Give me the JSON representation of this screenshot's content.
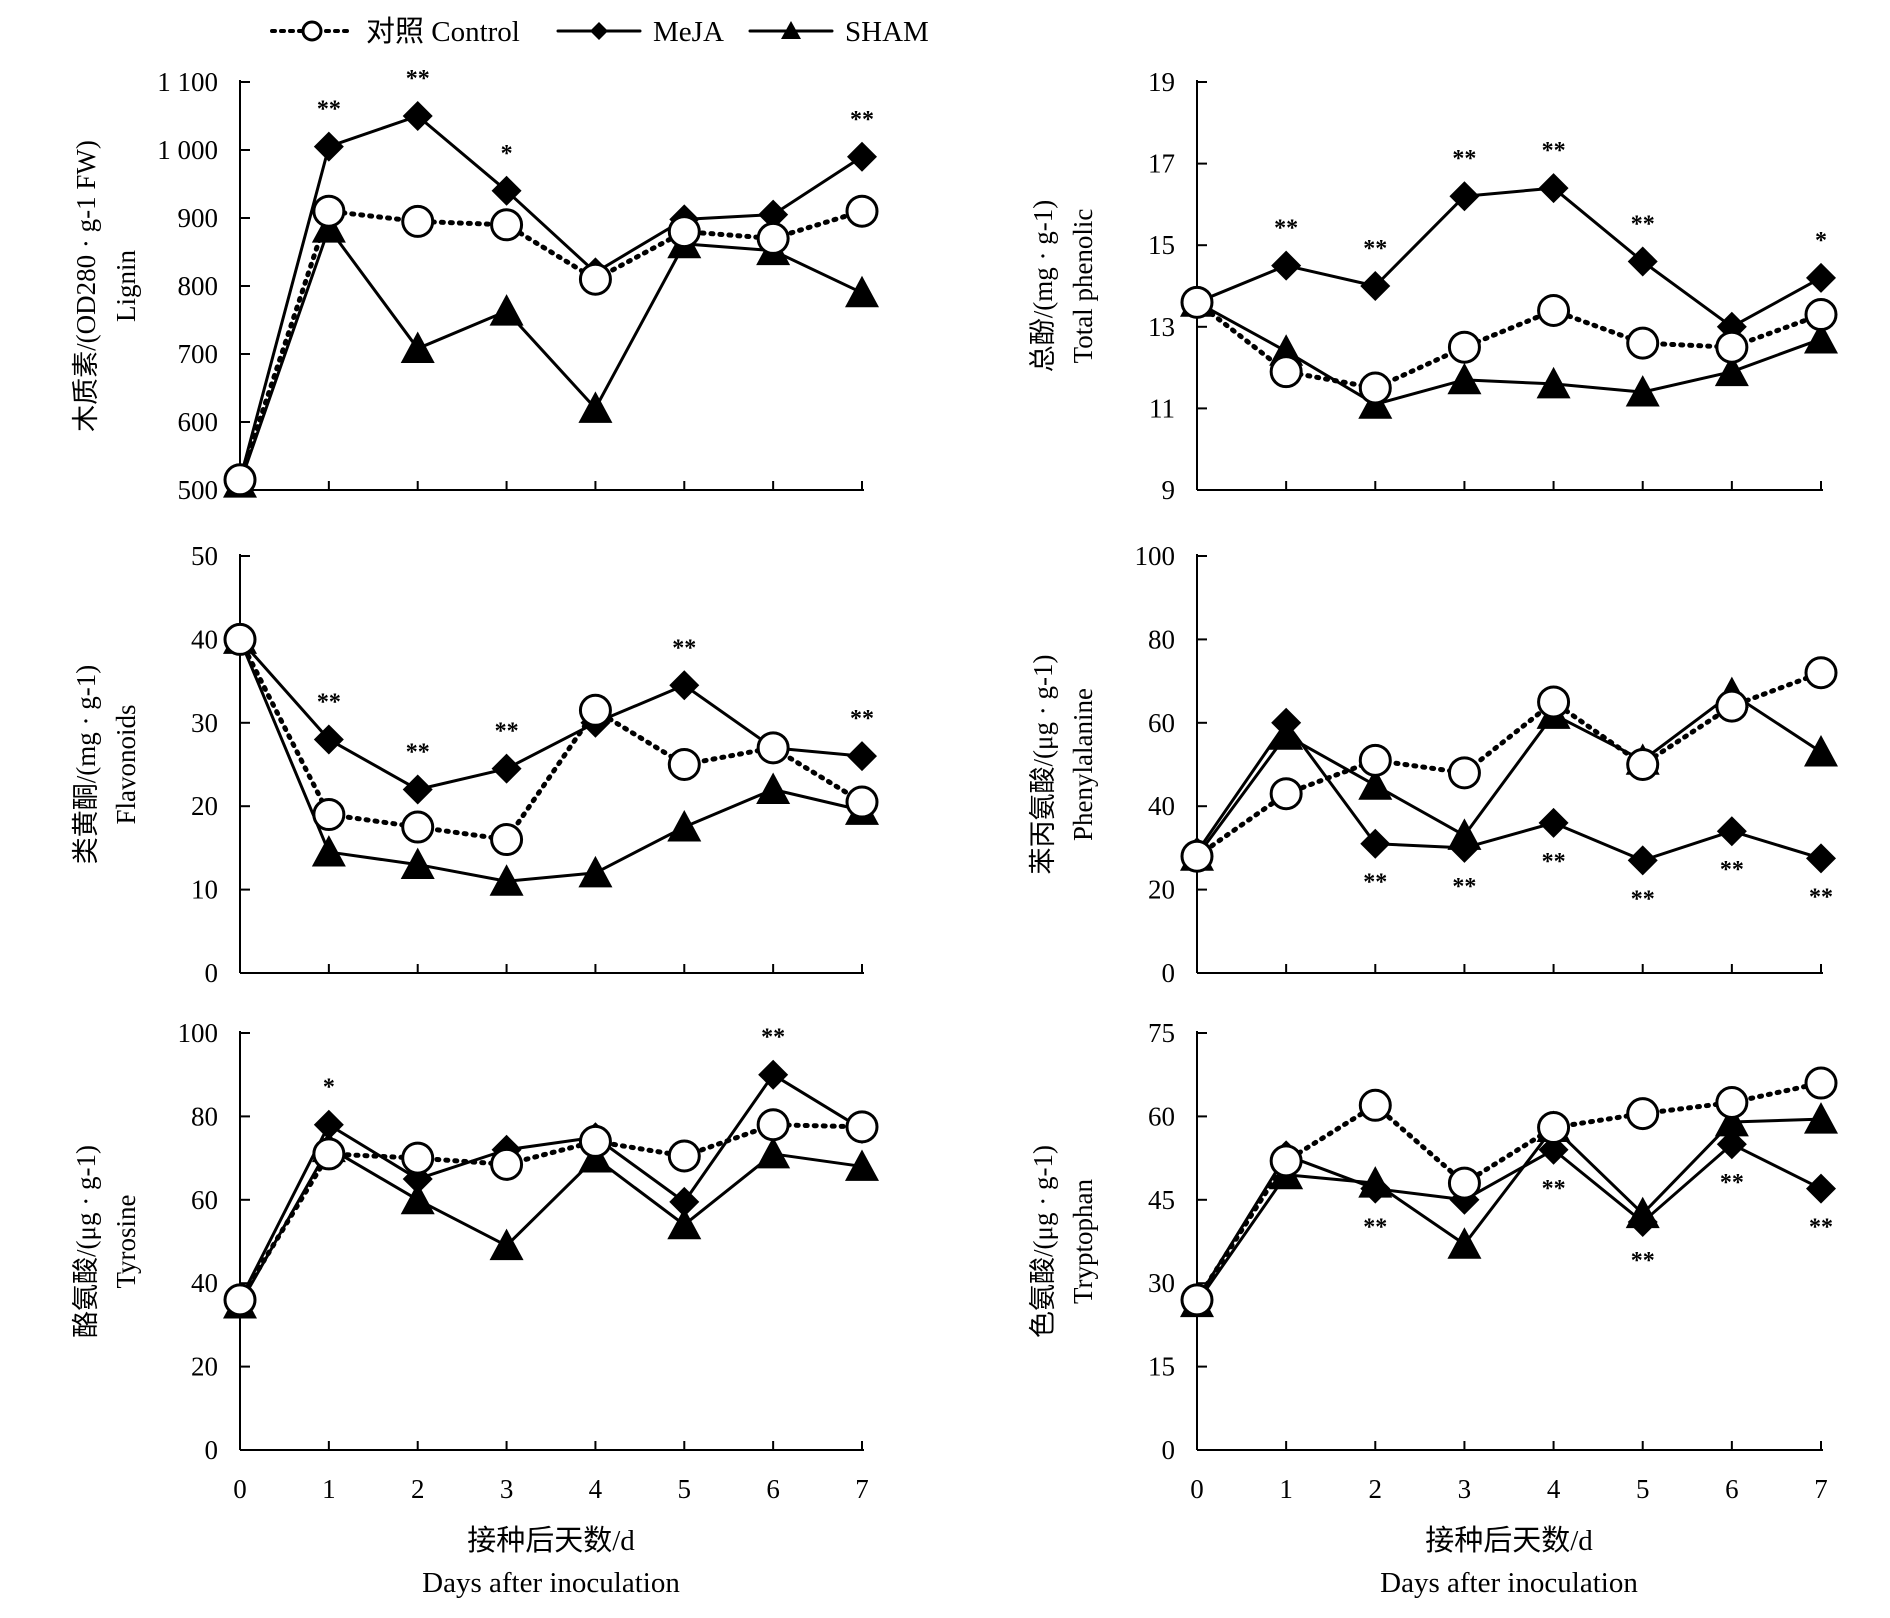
{
  "legend": {
    "entries": [
      {
        "key": "control",
        "label": "对照 Control",
        "line": "dotted",
        "marker": "circle"
      },
      {
        "key": "meja",
        "label": "MeJA",
        "line": "solid",
        "marker": "diamond"
      },
      {
        "key": "sham",
        "label": "SHAM",
        "line": "solid",
        "marker": "triangle"
      }
    ],
    "placement": "top-left"
  },
  "x_axis": {
    "ticks": [
      "0",
      "1",
      "2",
      "3",
      "4",
      "5",
      "6",
      "7"
    ],
    "label_cn": "接种后天数/d",
    "label_en": "Days after inoculation"
  },
  "chart_data": [
    {
      "type": "line",
      "ylabel_cn": "木质素/(OD280 · g-1 FW)",
      "ylabel_en": "Lignin",
      "ylim": [
        500,
        1100
      ],
      "yticks": [
        500,
        600,
        700,
        800,
        900,
        1000,
        1100
      ],
      "ytick_labels": [
        "500",
        "600",
        "700",
        "800",
        "900",
        "1 000",
        "1 100"
      ],
      "x": [
        0,
        1,
        2,
        3,
        4,
        5,
        6,
        7
      ],
      "grid": false,
      "series": [
        {
          "name": "对照 Control",
          "values": [
            515,
            910,
            895,
            890,
            810,
            880,
            870,
            910
          ]
        },
        {
          "name": "MeJA",
          "values": [
            515,
            1005,
            1050,
            940,
            820,
            898,
            905,
            990
          ]
        },
        {
          "name": "SHAM",
          "values": [
            510,
            885,
            708,
            763,
            620,
            862,
            852,
            790
          ]
        }
      ],
      "annotations": [
        {
          "x": 1,
          "text": "**",
          "position": "above"
        },
        {
          "x": 2,
          "text": "**",
          "position": "above"
        },
        {
          "x": 3,
          "text": "*",
          "position": "above"
        },
        {
          "x": 7,
          "text": "**",
          "position": "above"
        }
      ]
    },
    {
      "type": "line",
      "ylabel_cn": "总酚/(mg · g-1)",
      "ylabel_en": "Total phenolic",
      "ylim": [
        9,
        19
      ],
      "yticks": [
        9,
        11,
        13,
        15,
        17,
        19
      ],
      "ytick_labels": [
        "9",
        "11",
        "13",
        "15",
        "17",
        "19"
      ],
      "x": [
        0,
        1,
        2,
        3,
        4,
        5,
        6,
        7
      ],
      "grid": false,
      "series": [
        {
          "name": "对照 Control",
          "values": [
            13.6,
            11.9,
            11.5,
            12.5,
            13.4,
            12.6,
            12.5,
            13.3
          ]
        },
        {
          "name": "MeJA",
          "values": [
            13.6,
            14.5,
            14.0,
            16.2,
            16.4,
            14.6,
            13.0,
            14.2
          ]
        },
        {
          "name": "SHAM",
          "values": [
            13.6,
            12.4,
            11.1,
            11.7,
            11.6,
            11.4,
            11.9,
            12.7
          ]
        }
      ],
      "annotations": [
        {
          "x": 1,
          "text": "**",
          "position": "above"
        },
        {
          "x": 2,
          "text": "**",
          "position": "above"
        },
        {
          "x": 3,
          "text": "**",
          "position": "above"
        },
        {
          "x": 4,
          "text": "**",
          "position": "above"
        },
        {
          "x": 5,
          "text": "**",
          "position": "above"
        },
        {
          "x": 7,
          "text": "*",
          "position": "above"
        }
      ]
    },
    {
      "type": "line",
      "ylabel_cn": "类黄酮/(mg · g-1)",
      "ylabel_en": "Flavonoids",
      "ylim": [
        0,
        50
      ],
      "yticks": [
        0,
        10,
        20,
        30,
        40,
        50
      ],
      "ytick_labels": [
        "0",
        "10",
        "20",
        "30",
        "40",
        "50"
      ],
      "x": [
        0,
        1,
        2,
        3,
        4,
        5,
        6,
        7
      ],
      "grid": false,
      "series": [
        {
          "name": "对照 Control",
          "values": [
            40,
            19,
            17.5,
            16,
            31.5,
            25,
            27,
            20.5
          ]
        },
        {
          "name": "MeJA",
          "values": [
            40,
            28,
            22,
            24.5,
            30,
            34.5,
            27,
            26
          ]
        },
        {
          "name": "SHAM",
          "values": [
            40,
            14.5,
            13,
            11,
            12,
            17.5,
            22,
            19.5
          ]
        }
      ],
      "annotations": [
        {
          "x": 1,
          "text": "**",
          "position": "above"
        },
        {
          "x": 2,
          "text": "**",
          "position": "above"
        },
        {
          "x": 3,
          "text": "**",
          "position": "above"
        },
        {
          "x": 5,
          "text": "**",
          "position": "above"
        },
        {
          "x": 7,
          "text": "**",
          "position": "above"
        }
      ]
    },
    {
      "type": "line",
      "ylabel_cn": "苯丙氨酸/(μg · g-1)",
      "ylabel_en": "Phenylalanine",
      "ylim": [
        0,
        100
      ],
      "yticks": [
        0,
        20,
        40,
        60,
        80,
        100
      ],
      "ytick_labels": [
        "0",
        "20",
        "40",
        "60",
        "80",
        "100"
      ],
      "x": [
        0,
        1,
        2,
        3,
        4,
        5,
        6,
        7
      ],
      "grid": false,
      "series": [
        {
          "name": "对照 Control",
          "values": [
            28,
            43,
            51,
            48,
            65,
            50,
            64,
            72
          ]
        },
        {
          "name": "MeJA",
          "values": [
            29,
            60,
            31,
            30,
            36,
            27,
            34,
            27.5
          ]
        },
        {
          "name": "SHAM",
          "values": [
            28,
            57,
            45,
            33,
            62,
            51,
            67,
            53
          ]
        }
      ],
      "annotations": [
        {
          "x": 2,
          "text": "**",
          "position": "below"
        },
        {
          "x": 3,
          "text": "**",
          "position": "below"
        },
        {
          "x": 4,
          "text": "**",
          "position": "below"
        },
        {
          "x": 5,
          "text": "**",
          "position": "below"
        },
        {
          "x": 6,
          "text": "**",
          "position": "below"
        },
        {
          "x": 7,
          "text": "**",
          "position": "below"
        }
      ]
    },
    {
      "type": "line",
      "ylabel_cn": "酪氨酸/(μg · g-1)",
      "ylabel_en": "Tyrosine",
      "ylim": [
        0,
        100
      ],
      "yticks": [
        0,
        20,
        40,
        60,
        80,
        100
      ],
      "ytick_labels": [
        "0",
        "20",
        "40",
        "60",
        "80",
        "100"
      ],
      "x": [
        0,
        1,
        2,
        3,
        4,
        5,
        6,
        7
      ],
      "grid": false,
      "series": [
        {
          "name": "对照 Control",
          "values": [
            36,
            71,
            70,
            68.5,
            74,
            70.5,
            78,
            77.5
          ]
        },
        {
          "name": "MeJA",
          "values": [
            36,
            78,
            65,
            72,
            75,
            59.5,
            90,
            77
          ]
        },
        {
          "name": "SHAM",
          "values": [
            35,
            72.5,
            60,
            49,
            70,
            54,
            71,
            68
          ]
        }
      ],
      "annotations": [
        {
          "x": 1,
          "text": "*",
          "position": "above"
        },
        {
          "x": 6,
          "text": "**",
          "position": "above"
        }
      ]
    },
    {
      "type": "line",
      "ylabel_cn": "色氨酸/(μg · g-1)",
      "ylabel_en": "Tryptophan",
      "ylim": [
        0,
        75
      ],
      "yticks": [
        0,
        15,
        30,
        45,
        60,
        75
      ],
      "ytick_labels": [
        "0",
        "15",
        "30",
        "45",
        "60",
        "75"
      ],
      "x": [
        0,
        1,
        2,
        3,
        4,
        5,
        6,
        7
      ],
      "grid": false,
      "series": [
        {
          "name": "对照 Control",
          "values": [
            27,
            52,
            62,
            48,
            58,
            60.5,
            62.5,
            66
          ]
        },
        {
          "name": "MeJA",
          "values": [
            27,
            53,
            47,
            45,
            54,
            41,
            55,
            47
          ]
        },
        {
          "name": "SHAM",
          "values": [
            26.5,
            49.5,
            48,
            37,
            58,
            42.5,
            59,
            59.5
          ]
        }
      ],
      "annotations": [
        {
          "x": 2,
          "text": "**",
          "position": "below"
        },
        {
          "x": 4,
          "text": "**",
          "position": "below"
        },
        {
          "x": 5,
          "text": "**",
          "position": "below"
        },
        {
          "x": 6,
          "text": "**",
          "position": "below"
        },
        {
          "x": 7,
          "text": "**",
          "position": "below"
        }
      ]
    }
  ]
}
